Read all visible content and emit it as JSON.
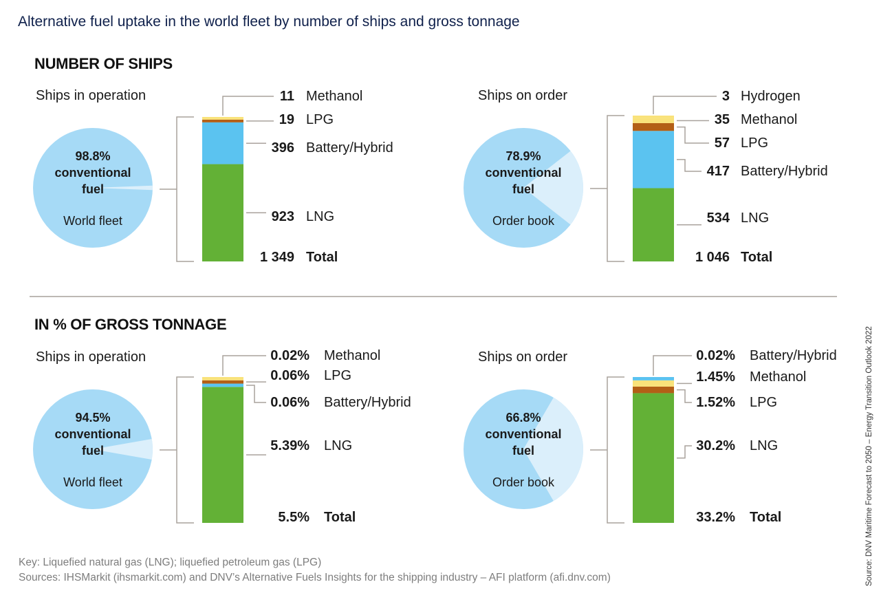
{
  "title": "Alternative fuel uptake in the world fleet by number of ships and gross tonnage",
  "sections": {
    "ships": "NUMBER OF SHIPS",
    "tonnage": "IN % OF GROSS TONNAGE"
  },
  "footer": {
    "key": "Key: Liquefied natural gas (LNG); liquefied petroleum gas (LPG)",
    "sources": "Sources: IHSMarkit (ihsmarkit.com) and DNV’s Alternative Fuels Insights for the shipping industry – AFI platform (afi.dnv.com)",
    "vertical_source": "Source: DNV Maritime Forecast to 2050 – Energy Transition Outlook 2022"
  },
  "colors": {
    "pie_main": "#a6daf6",
    "pie_alt": "#dbeffb",
    "LNG": "#63b136",
    "Battery/Hybrid": "#5bc3f0",
    "LPG": "#b35f16",
    "Methanol": "#f9e27a",
    "Hydrogen": "#f9e27a",
    "connector": "#a9a29c"
  },
  "chart_data": [
    {
      "type": "pie+stacked-bar",
      "id": "ships-operation",
      "subtitle": "Ships in operation",
      "pie": {
        "conventional_pct": 98.8,
        "label_pct": "98.8%",
        "label_line1": "conventional",
        "label_line2": "fuel",
        "caption": "World fleet"
      },
      "bar": {
        "unit": "ships",
        "segments": [
          {
            "name": "LNG",
            "value": 923,
            "label": "923"
          },
          {
            "name": "Battery/Hybrid",
            "value": 396,
            "label": "396"
          },
          {
            "name": "LPG",
            "value": 19,
            "label": "19"
          },
          {
            "name": "Methanol",
            "value": 11,
            "label": "11"
          }
        ],
        "total": {
          "value": 1349,
          "label": "1 349",
          "name": "Total"
        }
      }
    },
    {
      "type": "pie+stacked-bar",
      "id": "ships-order",
      "subtitle": "Ships on order",
      "pie": {
        "conventional_pct": 78.9,
        "label_pct": "78.9%",
        "label_line1": "conventional",
        "label_line2": "fuel",
        "caption": "Order book"
      },
      "bar": {
        "unit": "ships",
        "segments": [
          {
            "name": "LNG",
            "value": 534,
            "label": "534"
          },
          {
            "name": "Battery/Hybrid",
            "value": 417,
            "label": "417"
          },
          {
            "name": "LPG",
            "value": 57,
            "label": "57"
          },
          {
            "name": "Methanol",
            "value": 35,
            "label": "35"
          },
          {
            "name": "Hydrogen",
            "value": 3,
            "label": "3"
          }
        ],
        "total": {
          "value": 1046,
          "label": "1 046",
          "name": "Total"
        }
      }
    },
    {
      "type": "pie+stacked-bar",
      "id": "tonnage-operation",
      "subtitle": "Ships in operation",
      "pie": {
        "conventional_pct": 94.5,
        "label_pct": "94.5%",
        "label_line1": "conventional",
        "label_line2": "fuel",
        "caption": "World fleet"
      },
      "bar": {
        "unit": "% of gross tonnage",
        "segments": [
          {
            "name": "LNG",
            "value": 5.39,
            "label": "5.39%"
          },
          {
            "name": "Battery/Hybrid",
            "value": 0.06,
            "label": "0.06%"
          },
          {
            "name": "LPG",
            "value": 0.06,
            "label": "0.06%"
          },
          {
            "name": "Methanol",
            "value": 0.02,
            "label": "0.02%"
          }
        ],
        "total": {
          "value": 5.5,
          "label": "5.5%",
          "name": "Total"
        }
      }
    },
    {
      "type": "pie+stacked-bar",
      "id": "tonnage-order",
      "subtitle": "Ships on order",
      "pie": {
        "conventional_pct": 66.8,
        "label_pct": "66.8%",
        "label_line1": "conventional",
        "label_line2": "fuel",
        "caption": "Order book"
      },
      "bar": {
        "unit": "% of gross tonnage",
        "segments": [
          {
            "name": "LNG",
            "value": 30.2,
            "label": "30.2%"
          },
          {
            "name": "LPG",
            "value": 1.52,
            "label": "1.52%"
          },
          {
            "name": "Methanol",
            "value": 1.45,
            "label": "1.45%"
          },
          {
            "name": "Battery/Hybrid",
            "value": 0.02,
            "label": "0.02%"
          }
        ],
        "total": {
          "value": 33.2,
          "label": "33.2%",
          "name": "Total"
        }
      }
    }
  ]
}
